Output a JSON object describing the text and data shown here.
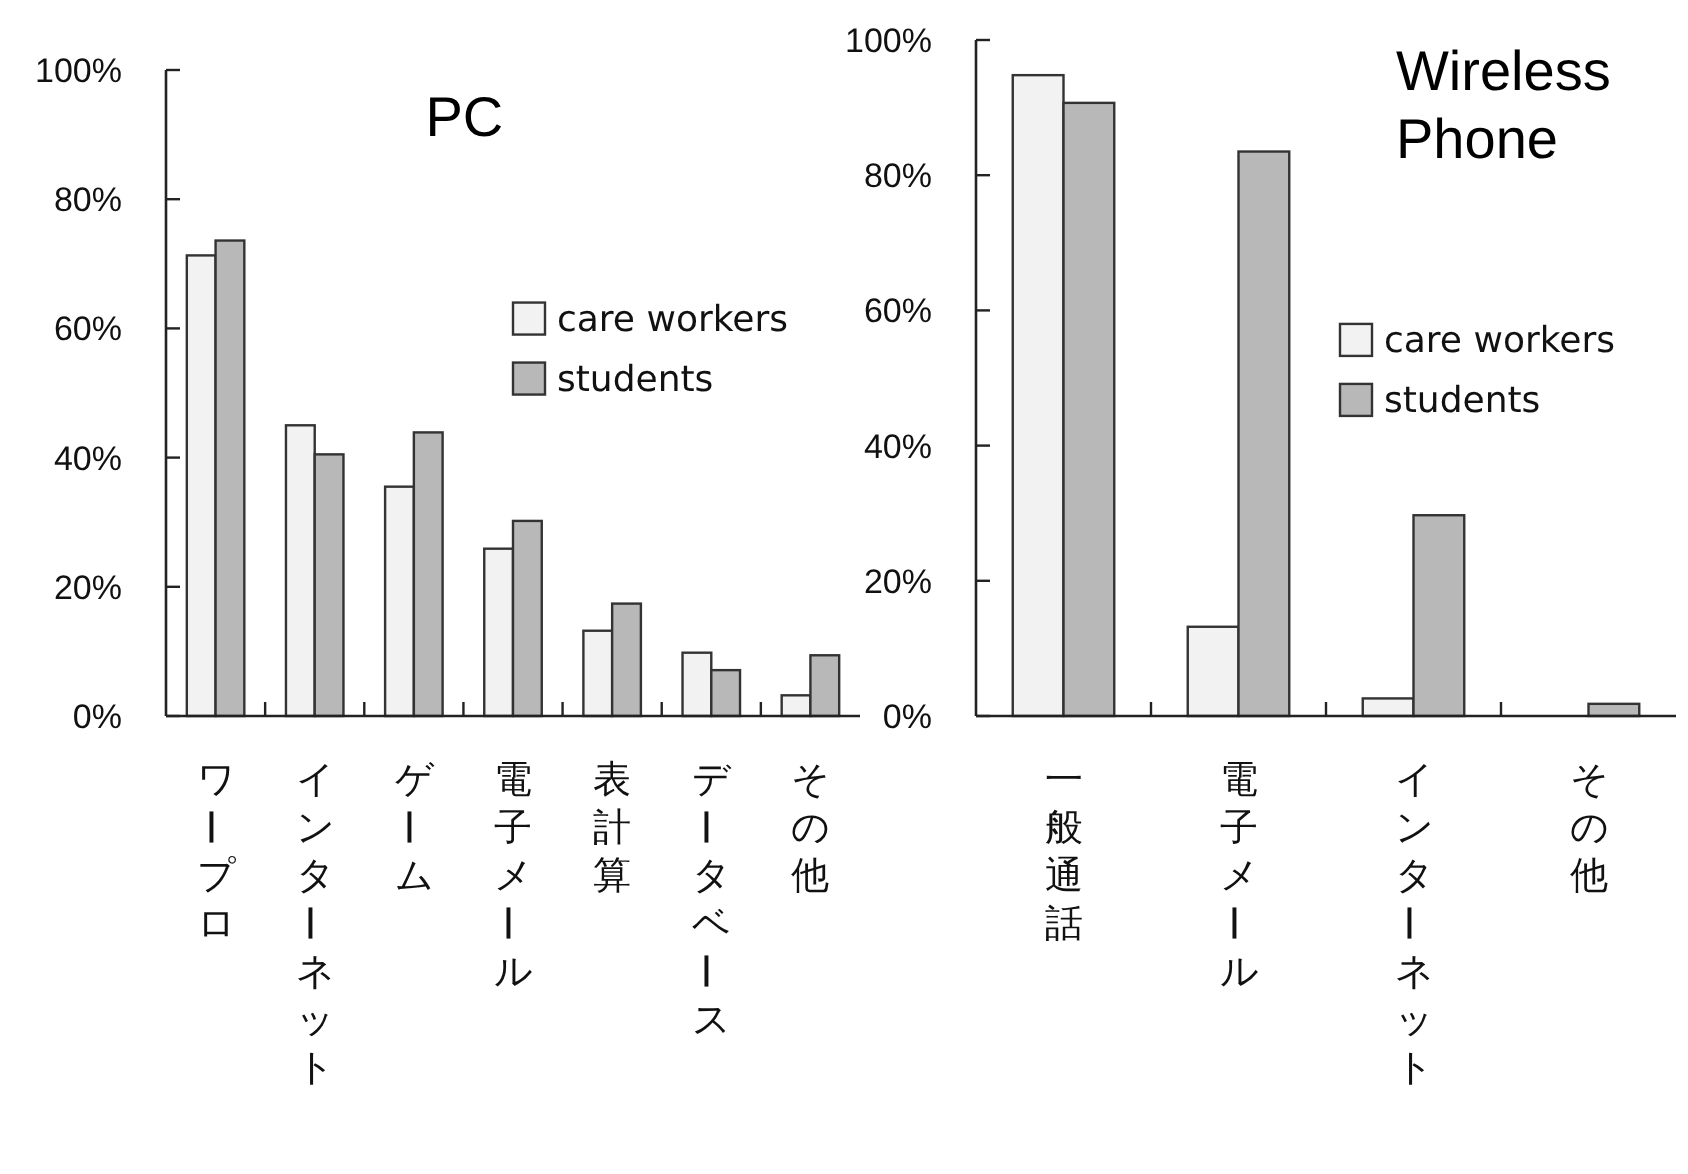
{
  "chart_data": [
    {
      "type": "bar",
      "title": "PC",
      "categories": [
        "ワープロ",
        "インターネット",
        "ゲーム",
        "電子メール",
        "表計算",
        "データベース",
        "その他"
      ],
      "series": [
        {
          "name": "care workers",
          "color": "#f2f2f2",
          "values": [
            71.3,
            45.0,
            35.5,
            25.9,
            13.2,
            9.8,
            3.2
          ]
        },
        {
          "name": "students",
          "color": "#b8b8b8",
          "values": [
            73.6,
            40.5,
            43.9,
            30.2,
            17.4,
            7.1,
            9.4
          ]
        }
      ],
      "ylim": [
        0,
        100
      ],
      "yticks": [
        {
          "value": 0,
          "label": "0%"
        },
        {
          "value": 20,
          "label": "20%"
        },
        {
          "value": 40,
          "label": "40%"
        },
        {
          "value": 60,
          "label": "60%"
        },
        {
          "value": 80,
          "label": "80%"
        },
        {
          "value": 100,
          "label": "100%"
        }
      ],
      "legend": "right"
    },
    {
      "type": "bar",
      "title": "Wireless\nPhone",
      "categories": [
        "一般通話",
        "電子メール",
        "インターネット",
        "その他"
      ],
      "series": [
        {
          "name": "care workers",
          "color": "#f2f2f2",
          "values": [
            94.8,
            13.2,
            2.6,
            0
          ]
        },
        {
          "name": "students",
          "color": "#b8b8b8",
          "values": [
            90.7,
            83.5,
            29.7,
            1.8
          ]
        }
      ],
      "ylim": [
        0,
        100
      ],
      "yticks": [
        {
          "value": 0,
          "label": "0%"
        },
        {
          "value": 20,
          "label": "20%"
        },
        {
          "value": 40,
          "label": "40%"
        },
        {
          "value": 60,
          "label": "60%"
        },
        {
          "value": 80,
          "label": "80%"
        },
        {
          "value": 100,
          "label": "100%"
        }
      ],
      "legend": "right"
    }
  ]
}
